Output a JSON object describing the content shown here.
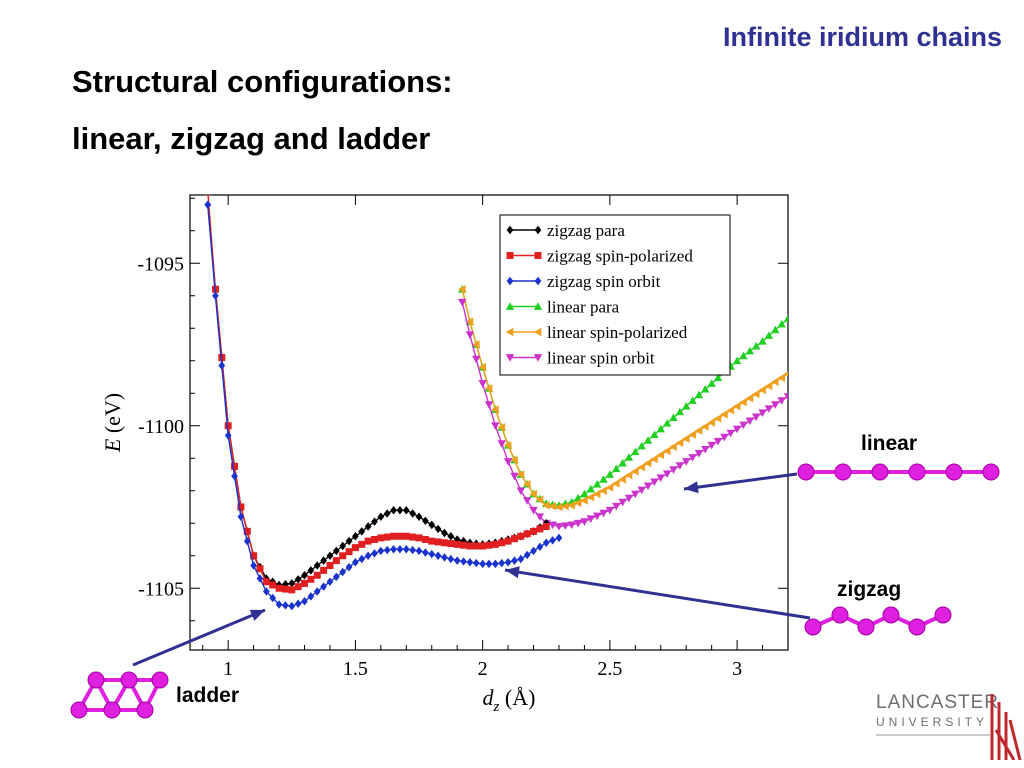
{
  "slide": {
    "title": "Infinite iridium chains",
    "heading_line1": "Structural configurations:",
    "heading_line2": "linear, zigzag and ladder"
  },
  "labels": {
    "linear": "linear",
    "zigzag": "zigzag",
    "ladder": "ladder"
  },
  "logo": {
    "line1": "LANCASTER",
    "line2": "UNIVERSITY"
  },
  "colors": {
    "title": "#2e3192",
    "arrow": "#2e3192",
    "atom": "#e020e0"
  },
  "chart_data": {
    "type": "line",
    "xlabel_main": "d",
    "xlabel_sub": "z",
    "xlabel_unit": "(Å)",
    "ylabel_main": "E",
    "ylabel_unit": "(eV)",
    "xlim": [
      0.85,
      3.2
    ],
    "ylim": [
      -1106.9,
      -1092.9
    ],
    "xticks": [
      1,
      1.5,
      2,
      2.5,
      3
    ],
    "xtick_labels": [
      "1",
      "1.5",
      "2",
      "2.5",
      "3"
    ],
    "yticks": [
      -1095,
      -1100,
      -1105
    ],
    "ytick_labels": [
      "-1095",
      "-1100",
      "-1105"
    ],
    "legend_position": "top-right",
    "series": [
      {
        "name": "zigzag para",
        "color": "#000000",
        "marker": "diamond",
        "points": [
          [
            0.92,
            -1093.2
          ],
          [
            0.95,
            -1095.8
          ],
          [
            1.0,
            -1100.0
          ],
          [
            1.05,
            -1102.5
          ],
          [
            1.1,
            -1104.0
          ],
          [
            1.15,
            -1104.7
          ],
          [
            1.2,
            -1104.9
          ],
          [
            1.25,
            -1104.85
          ],
          [
            1.3,
            -1104.6
          ],
          [
            1.35,
            -1104.3
          ],
          [
            1.4,
            -1104.0
          ],
          [
            1.45,
            -1103.7
          ],
          [
            1.5,
            -1103.4
          ],
          [
            1.55,
            -1103.1
          ],
          [
            1.6,
            -1102.8
          ],
          [
            1.65,
            -1102.6
          ],
          [
            1.7,
            -1102.6
          ],
          [
            1.75,
            -1102.8
          ],
          [
            1.8,
            -1103.05
          ],
          [
            1.85,
            -1103.3
          ],
          [
            1.9,
            -1103.5
          ],
          [
            1.95,
            -1103.6
          ],
          [
            2.0,
            -1103.65
          ],
          [
            2.05,
            -1103.6
          ],
          [
            2.1,
            -1103.5
          ],
          [
            2.15,
            -1103.4
          ],
          [
            2.2,
            -1103.25
          ],
          [
            2.25,
            -1103.0
          ]
        ]
      },
      {
        "name": "zigzag spin-polarized",
        "color": "#e02020",
        "marker": "square",
        "points": [
          [
            0.92,
            -1092.8
          ],
          [
            0.95,
            -1095.8
          ],
          [
            1.0,
            -1100.0
          ],
          [
            1.05,
            -1102.5
          ],
          [
            1.1,
            -1104.0
          ],
          [
            1.15,
            -1104.8
          ],
          [
            1.2,
            -1105.0
          ],
          [
            1.25,
            -1105.05
          ],
          [
            1.3,
            -1104.85
          ],
          [
            1.35,
            -1104.6
          ],
          [
            1.4,
            -1104.3
          ],
          [
            1.45,
            -1104.0
          ],
          [
            1.5,
            -1103.75
          ],
          [
            1.55,
            -1103.55
          ],
          [
            1.6,
            -1103.45
          ],
          [
            1.65,
            -1103.4
          ],
          [
            1.7,
            -1103.4
          ],
          [
            1.75,
            -1103.45
          ],
          [
            1.8,
            -1103.55
          ],
          [
            1.85,
            -1103.6
          ],
          [
            1.9,
            -1103.65
          ],
          [
            1.95,
            -1103.7
          ],
          [
            2.0,
            -1103.7
          ],
          [
            2.05,
            -1103.65
          ],
          [
            2.1,
            -1103.55
          ],
          [
            2.15,
            -1103.4
          ],
          [
            2.2,
            -1103.25
          ],
          [
            2.25,
            -1103.1
          ]
        ]
      },
      {
        "name": "zigzag spin orbit",
        "color": "#1a33cc",
        "marker": "diamond",
        "points": [
          [
            0.92,
            -1093.2
          ],
          [
            0.95,
            -1096.0
          ],
          [
            1.0,
            -1100.3
          ],
          [
            1.05,
            -1102.8
          ],
          [
            1.1,
            -1104.3
          ],
          [
            1.15,
            -1105.1
          ],
          [
            1.2,
            -1105.5
          ],
          [
            1.25,
            -1105.55
          ],
          [
            1.3,
            -1105.4
          ],
          [
            1.35,
            -1105.1
          ],
          [
            1.4,
            -1104.8
          ],
          [
            1.45,
            -1104.5
          ],
          [
            1.5,
            -1104.2
          ],
          [
            1.55,
            -1104.0
          ],
          [
            1.6,
            -1103.85
          ],
          [
            1.65,
            -1103.8
          ],
          [
            1.7,
            -1103.8
          ],
          [
            1.75,
            -1103.85
          ],
          [
            1.8,
            -1103.95
          ],
          [
            1.85,
            -1104.05
          ],
          [
            1.9,
            -1104.15
          ],
          [
            1.95,
            -1104.2
          ],
          [
            2.0,
            -1104.25
          ],
          [
            2.05,
            -1104.25
          ],
          [
            2.1,
            -1104.2
          ],
          [
            2.15,
            -1104.1
          ],
          [
            2.2,
            -1103.85
          ],
          [
            2.25,
            -1103.6
          ],
          [
            2.3,
            -1103.45
          ]
        ]
      },
      {
        "name": "linear para",
        "color": "#20d020",
        "marker": "triangle-up",
        "points": [
          [
            1.92,
            -1095.8
          ],
          [
            1.95,
            -1096.8
          ],
          [
            2.0,
            -1098.2
          ],
          [
            2.05,
            -1099.5
          ],
          [
            2.1,
            -1100.6
          ],
          [
            2.15,
            -1101.5
          ],
          [
            2.2,
            -1102.1
          ],
          [
            2.25,
            -1102.4
          ],
          [
            2.3,
            -1102.45
          ],
          [
            2.35,
            -1102.35
          ],
          [
            2.4,
            -1102.1
          ],
          [
            2.5,
            -1101.5
          ],
          [
            2.6,
            -1100.8
          ],
          [
            2.7,
            -1100.1
          ],
          [
            2.8,
            -1099.4
          ],
          [
            2.9,
            -1098.7
          ],
          [
            3.0,
            -1098.0
          ],
          [
            3.1,
            -1097.4
          ],
          [
            3.2,
            -1096.7
          ]
        ]
      },
      {
        "name": "linear spin-polarized",
        "color": "#f0a020",
        "marker": "triangle-left",
        "points": [
          [
            1.92,
            -1095.8
          ],
          [
            1.95,
            -1096.8
          ],
          [
            2.0,
            -1098.2
          ],
          [
            2.05,
            -1099.5
          ],
          [
            2.1,
            -1100.6
          ],
          [
            2.15,
            -1101.5
          ],
          [
            2.2,
            -1102.1
          ],
          [
            2.25,
            -1102.45
          ],
          [
            2.3,
            -1102.5
          ],
          [
            2.35,
            -1102.45
          ],
          [
            2.4,
            -1102.3
          ],
          [
            2.5,
            -1101.9
          ],
          [
            2.6,
            -1101.4
          ],
          [
            2.7,
            -1100.9
          ],
          [
            2.8,
            -1100.4
          ],
          [
            2.9,
            -1099.9
          ],
          [
            3.0,
            -1099.4
          ],
          [
            3.1,
            -1098.9
          ],
          [
            3.2,
            -1098.4
          ]
        ]
      },
      {
        "name": "linear spin orbit",
        "color": "#cc33cc",
        "marker": "triangle-down",
        "points": [
          [
            1.92,
            -1096.2
          ],
          [
            1.95,
            -1097.2
          ],
          [
            2.0,
            -1098.7
          ],
          [
            2.05,
            -1100.0
          ],
          [
            2.1,
            -1101.1
          ],
          [
            2.15,
            -1102.0
          ],
          [
            2.2,
            -1102.6
          ],
          [
            2.25,
            -1103.0
          ],
          [
            2.3,
            -1103.1
          ],
          [
            2.35,
            -1103.05
          ],
          [
            2.4,
            -1102.95
          ],
          [
            2.5,
            -1102.6
          ],
          [
            2.6,
            -1102.1
          ],
          [
            2.7,
            -1101.6
          ],
          [
            2.8,
            -1101.1
          ],
          [
            2.9,
            -1100.6
          ],
          [
            3.0,
            -1100.1
          ],
          [
            3.1,
            -1099.6
          ],
          [
            3.2,
            -1099.1
          ]
        ]
      }
    ]
  }
}
